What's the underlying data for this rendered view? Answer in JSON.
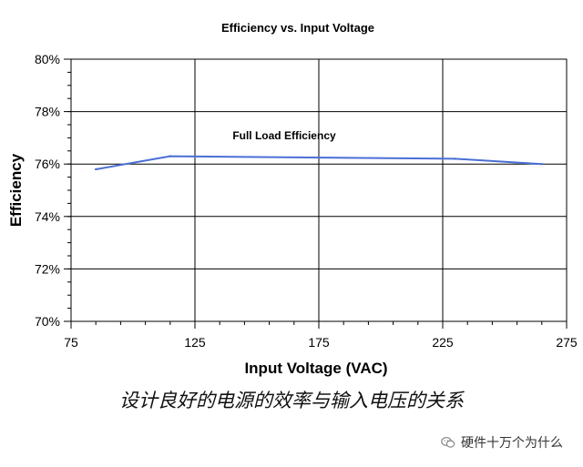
{
  "chart_data": {
    "type": "line",
    "title": "Efficiency vs. Input Voltage",
    "xlabel": "Input Voltage (VAC)",
    "ylabel": "Efficiency",
    "xlim": [
      75,
      275
    ],
    "ylim": [
      70,
      80
    ],
    "x_ticks": [
      "75",
      "125",
      "175",
      "225",
      "275"
    ],
    "x_tick_values": [
      75,
      125,
      175,
      225,
      275
    ],
    "x_minor_step": 10,
    "y_ticks": [
      "70%",
      "72%",
      "74%",
      "76%",
      "78%",
      "80%"
    ],
    "y_tick_values": [
      70,
      72,
      74,
      76,
      78,
      80
    ],
    "y_minor_step": 0.5,
    "x_gridlines": [
      125,
      175,
      225
    ],
    "y_gridlines": [
      72,
      74,
      76,
      78
    ],
    "series": [
      {
        "name": "Full Load Efficiency",
        "color": "#4a6fd6",
        "x": [
          85,
          115,
          230,
          265
        ],
        "y": [
          75.8,
          76.3,
          76.2,
          76.0
        ]
      }
    ],
    "annotation": "Full Load Efficiency"
  },
  "caption": "设计良好的电源的效率与输入电压的关系",
  "watermark": {
    "text": "硬件十万个为什么",
    "icon": "wechat-icon"
  },
  "colors": {
    "line": "#4a6fd6",
    "axis": "#000000",
    "grid": "#000000"
  }
}
